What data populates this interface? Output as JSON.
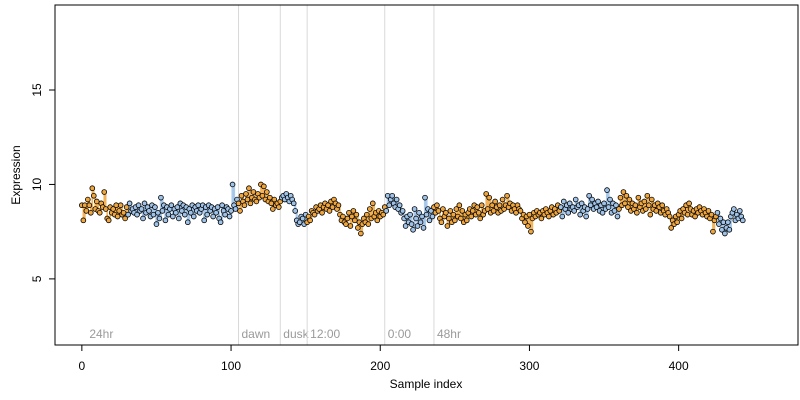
{
  "chart_data": {
    "type": "scatter",
    "xlabel": "Sample index",
    "ylabel": "Expression",
    "xlim": [
      -18,
      480
    ],
    "ylim": [
      1.5,
      19.5
    ],
    "x_ticks": [
      0,
      100,
      200,
      300,
      400
    ],
    "y_ticks": [
      5,
      10,
      15
    ],
    "grid": false,
    "colors": {
      "point_fill_light": "#9ec2e8",
      "point_fill_dark": "#f0a63c",
      "point_edge": "#000000",
      "step_light": "#9ec2e8",
      "step_dark": "#f0a63c",
      "annotation_line": "#d9d9d9",
      "annotation_text": "#9a9a9a"
    },
    "annotations": [
      {
        "x": 3,
        "label": "24hr",
        "line": false
      },
      {
        "x": 105,
        "label": "dawn",
        "line": true
      },
      {
        "x": 133,
        "label": "dusk",
        "line": true
      },
      {
        "x": 151,
        "label": "12:00",
        "line": true
      },
      {
        "x": 203,
        "label": "0:00",
        "line": true
      },
      {
        "x": 236,
        "label": "48hr",
        "line": true
      }
    ],
    "dark_intervals": [
      [
        0,
        30
      ],
      [
        105,
        133
      ],
      [
        151,
        203
      ],
      [
        236,
        320
      ],
      [
        360,
        425
      ]
    ],
    "series": [
      {
        "values": [
          8.9,
          8.1,
          8.9,
          8.6,
          9.2,
          8.9,
          8.5,
          9.8,
          9.4,
          8.7,
          9.1,
          8.6,
          8.5,
          9.0,
          8.8,
          9.6,
          8.7,
          8.2,
          8.1,
          8.8,
          8.5,
          8.7,
          8.4,
          8.9,
          8.3,
          8.6,
          8.9,
          8.4,
          8.5,
          8.2,
          8.8,
          8.4,
          9.0,
          8.6,
          8.7,
          8.5,
          8.8,
          8.4,
          8.9,
          8.6,
          8.7,
          8.2,
          9.0,
          8.5,
          8.8,
          8.6,
          8.3,
          8.9,
          8.4,
          8.8,
          7.9,
          8.5,
          8.2,
          9.3,
          8.6,
          8.9,
          8.1,
          8.8,
          8.4,
          8.7,
          8.9,
          8.3,
          8.7,
          8.5,
          8.8,
          8.2,
          9.0,
          8.6,
          8.9,
          8.4,
          8.8,
          8.0,
          8.7,
          8.5,
          8.9,
          8.3,
          8.8,
          8.6,
          8.9,
          8.5,
          8.7,
          8.9,
          8.1,
          8.8,
          8.4,
          8.9,
          8.6,
          8.8,
          8.3,
          8.7,
          8.5,
          8.8,
          8.2,
          8.0,
          8.9,
          8.6,
          8.4,
          8.8,
          8.7,
          8.3,
          8.6,
          10.0,
          8.9,
          8.7,
          9.2,
          9.0,
          8.6,
          9.4,
          9.1,
          8.9,
          9.5,
          9.2,
          9.8,
          9.0,
          9.3,
          9.6,
          9.2,
          9.1,
          9.5,
          9.3,
          10.0,
          9.4,
          9.9,
          9.2,
          9.6,
          9.1,
          9.3,
          9.0,
          8.7,
          9.2,
          8.9,
          9.0,
          8.8,
          9.1,
          9.3,
          9.4,
          9.2,
          9.5,
          9.3,
          9.1,
          9.4,
          9.2,
          9.0,
          8.6,
          8.1,
          7.9,
          8.0,
          8.3,
          8.2,
          7.9,
          8.4,
          8.0,
          8.3,
          8.1,
          8.6,
          8.5,
          8.4,
          8.8,
          8.6,
          8.7,
          8.9,
          8.5,
          8.8,
          9.0,
          8.7,
          8.9,
          8.6,
          9.1,
          8.8,
          9.2,
          9.0,
          8.7,
          8.9,
          8.4,
          8.1,
          8.3,
          8.0,
          7.9,
          8.2,
          8.5,
          7.8,
          8.3,
          8.6,
          8.1,
          8.4,
          7.7,
          8.0,
          7.4,
          7.9,
          8.2,
          8.0,
          8.4,
          7.9,
          8.7,
          8.2,
          9.0,
          8.3,
          8.5,
          8.1,
          8.6,
          8.3,
          8.5,
          8.4,
          8.8,
          8.6,
          9.4,
          8.9,
          9.2,
          9.4,
          9.0,
          8.8,
          9.2,
          8.7,
          8.9,
          8.5,
          8.6,
          8.2,
          7.8,
          8.3,
          8.0,
          8.4,
          7.9,
          7.6,
          8.7,
          8.2,
          7.8,
          8.5,
          8.0,
          8.3,
          7.7,
          9.3,
          8.4,
          8.7,
          8.1,
          8.6,
          8.3,
          8.8,
          8.5,
          8.9,
          8.6,
          8.2,
          8.0,
          8.7,
          8.3,
          8.5,
          7.8,
          8.2,
          8.6,
          8.0,
          8.4,
          8.1,
          8.7,
          8.3,
          8.9,
          8.2,
          8.6,
          8.0,
          8.4,
          8.1,
          8.5,
          8.7,
          8.3,
          8.6,
          8.9,
          8.4,
          8.8,
          8.5,
          8.2,
          8.9,
          8.4,
          8.6,
          9.5,
          8.7,
          9.3,
          8.5,
          8.9,
          8.6,
          9.1,
          8.8,
          8.5,
          8.9,
          8.6,
          9.2,
          8.7,
          8.9,
          9.4,
          8.8,
          9.0,
          8.6,
          8.9,
          8.7,
          8.5,
          8.9,
          8.7,
          8.6,
          8.2,
          8.4,
          8.0,
          8.3,
          7.8,
          8.4,
          7.5,
          8.2,
          8.5,
          8.3,
          8.6,
          8.4,
          8.5,
          8.2,
          8.6,
          8.4,
          8.7,
          8.5,
          8.3,
          8.6,
          8.8,
          8.4,
          8.7,
          8.5,
          8.9,
          8.6,
          8.8,
          8.3,
          9.1,
          8.7,
          8.9,
          8.5,
          9.0,
          8.7,
          8.8,
          8.6,
          9.2,
          8.8,
          8.9,
          8.4,
          9.0,
          8.6,
          8.8,
          8.3,
          8.7,
          9.4,
          8.9,
          9.2,
          8.7,
          9.0,
          8.8,
          9.1,
          8.6,
          8.9,
          8.5,
          9.0,
          8.7,
          9.7,
          8.8,
          9.2,
          8.5,
          9.0,
          8.6,
          8.9,
          8.3,
          8.7,
          9.3,
          8.9,
          9.6,
          9.0,
          9.4,
          8.8,
          9.2,
          8.6,
          9.0,
          8.7,
          8.9,
          8.5,
          9.3,
          8.8,
          9.0,
          8.6,
          9.1,
          8.7,
          9.4,
          8.9,
          8.4,
          9.2,
          8.7,
          8.9,
          8.6,
          9.0,
          8.8,
          8.5,
          8.9,
          8.6,
          8.4,
          8.7,
          8.5,
          8.3,
          7.7,
          8.1,
          7.9,
          8.3,
          8.0,
          8.4,
          8.6,
          8.2,
          8.7,
          8.5,
          8.9,
          8.4,
          9.0,
          8.7,
          8.4,
          8.6,
          8.3,
          8.7,
          8.5,
          8.8,
          8.6,
          8.4,
          8.7,
          8.5,
          8.3,
          8.6,
          8.2,
          8.4,
          7.5,
          8.1,
          8.3,
          8.5,
          7.9,
          8.2,
          7.6,
          8.0,
          7.4,
          7.7,
          8.0,
          7.6,
          8.3,
          8.5,
          8.7,
          8.1,
          8.4,
          8.2,
          8.6,
          8.3,
          8.1
        ]
      }
    ]
  }
}
